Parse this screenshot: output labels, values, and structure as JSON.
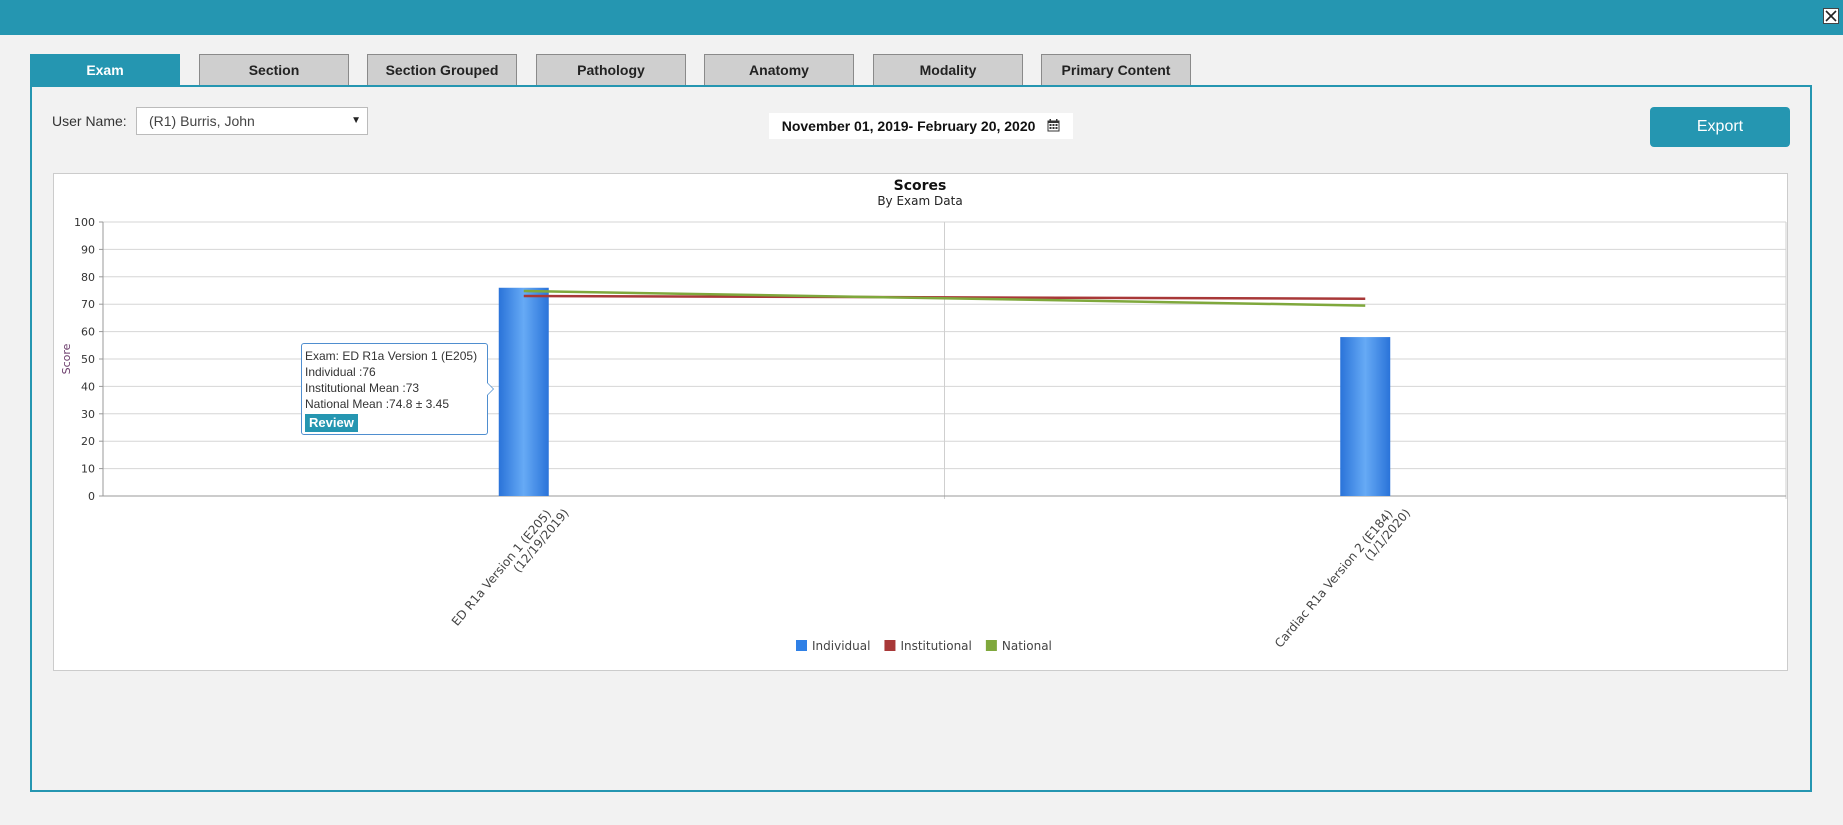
{
  "window": {
    "close_label": "×"
  },
  "tabs": [
    {
      "label": "Exam",
      "active": true
    },
    {
      "label": "Section",
      "active": false
    },
    {
      "label": "Section Grouped",
      "active": false
    },
    {
      "label": "Pathology",
      "active": false
    },
    {
      "label": "Anatomy",
      "active": false
    },
    {
      "label": "Modality",
      "active": false
    },
    {
      "label": "Primary Content",
      "active": false
    }
  ],
  "filters": {
    "user_label": "User Name:",
    "user_value": "(R1) Burris, John",
    "date_range": "November 01, 2019- February 20, 2020"
  },
  "toolbar": {
    "export_label": "Export"
  },
  "tooltip": {
    "exam": "Exam: ED R1a Version 1 (E205)",
    "individual": "Individual :76",
    "institutional": "Institutional Mean :73",
    "national": "National Mean :74.8 ± 3.45",
    "review_label": "Review"
  },
  "colors": {
    "accent": "#2596b1",
    "individual": "#2f80e6",
    "institutional": "#a83838",
    "national": "#7fa83c"
  },
  "chart_data": {
    "type": "bar",
    "title": "Scores",
    "subtitle": "By Exam Data",
    "ylabel": "Score",
    "ylim": [
      0,
      100
    ],
    "yticks": [
      0,
      10,
      20,
      30,
      40,
      50,
      60,
      70,
      80,
      90,
      100
    ],
    "categories": [
      [
        "ED R1a Version 1 (E205)",
        "(12/19/2019)"
      ],
      [
        "Cardiac R1a Version 2 (E184)",
        "(1/1/2020)"
      ]
    ],
    "series": [
      {
        "name": "Individual",
        "kind": "bar",
        "values": [
          76,
          58
        ]
      },
      {
        "name": "Institutional",
        "kind": "line",
        "values": [
          73,
          72
        ]
      },
      {
        "name": "National",
        "kind": "line",
        "values": [
          74.8,
          69.5
        ]
      }
    ],
    "grid": true,
    "legend": "bottom-center"
  }
}
